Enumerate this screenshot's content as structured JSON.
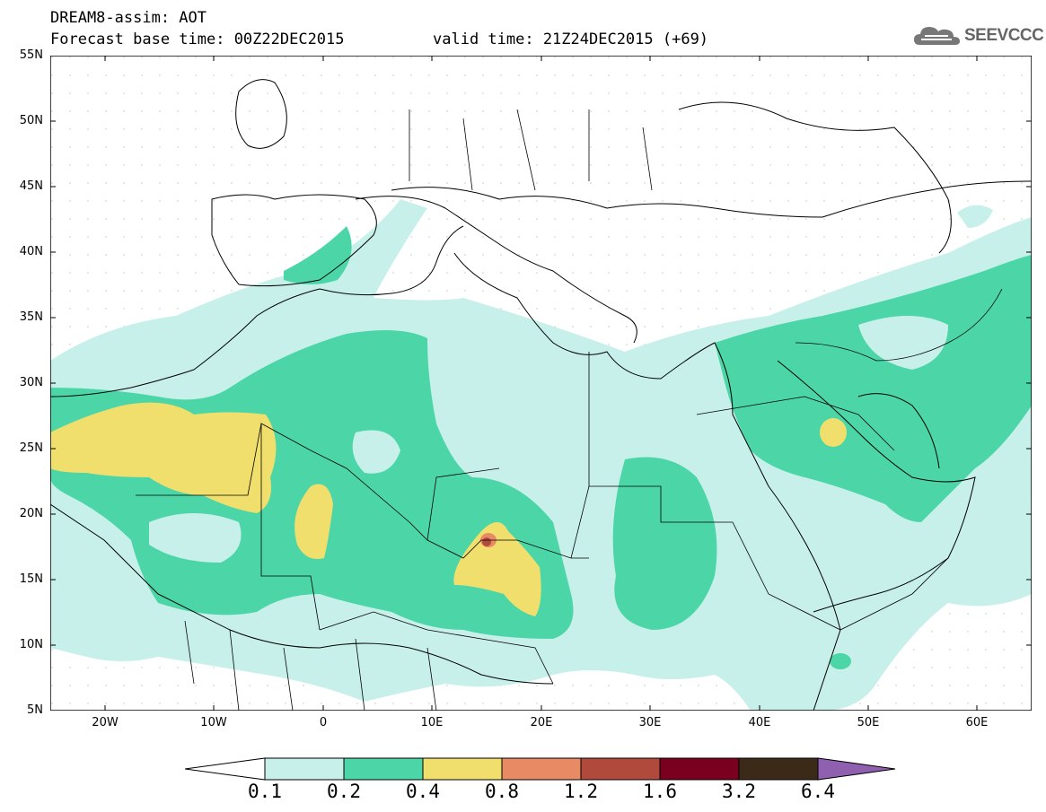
{
  "header": {
    "title": "DREAM8-assim: AOT",
    "base_time": "Forecast base time: 00Z22DEC2015",
    "valid_time": "valid time: 21Z24DEC2015 (+69)",
    "logo_text": "SEEVCCC"
  },
  "map": {
    "lat_labels": [
      "55N",
      "50N",
      "45N",
      "40N",
      "35N",
      "30N",
      "25N",
      "20N",
      "15N",
      "10N",
      "5N"
    ],
    "lon_labels": [
      "20W",
      "10W",
      "0",
      "10E",
      "20E",
      "30E",
      "40E",
      "50E",
      "60E"
    ],
    "lat_range": [
      5,
      55
    ],
    "lon_range": [
      -25,
      65
    ],
    "colors": {
      "aot_0_1": "#c8f0ea",
      "aot_0_2": "#4cd6a8",
      "aot_0_4": "#f0df6c",
      "aot_0_8": "#e88a64",
      "aot_1_2": "#b04a3c"
    }
  },
  "colorbar": {
    "labels": [
      "0.1",
      "0.2",
      "0.4",
      "0.8",
      "1.2",
      "1.6",
      "3.2",
      "6.4"
    ],
    "colors": [
      "#ffffff",
      "#c8f0ea",
      "#4cd6a8",
      "#f0df6c",
      "#e88a64",
      "#b04a3c",
      "#7a0020",
      "#3c2a18",
      "#9060b0"
    ]
  }
}
